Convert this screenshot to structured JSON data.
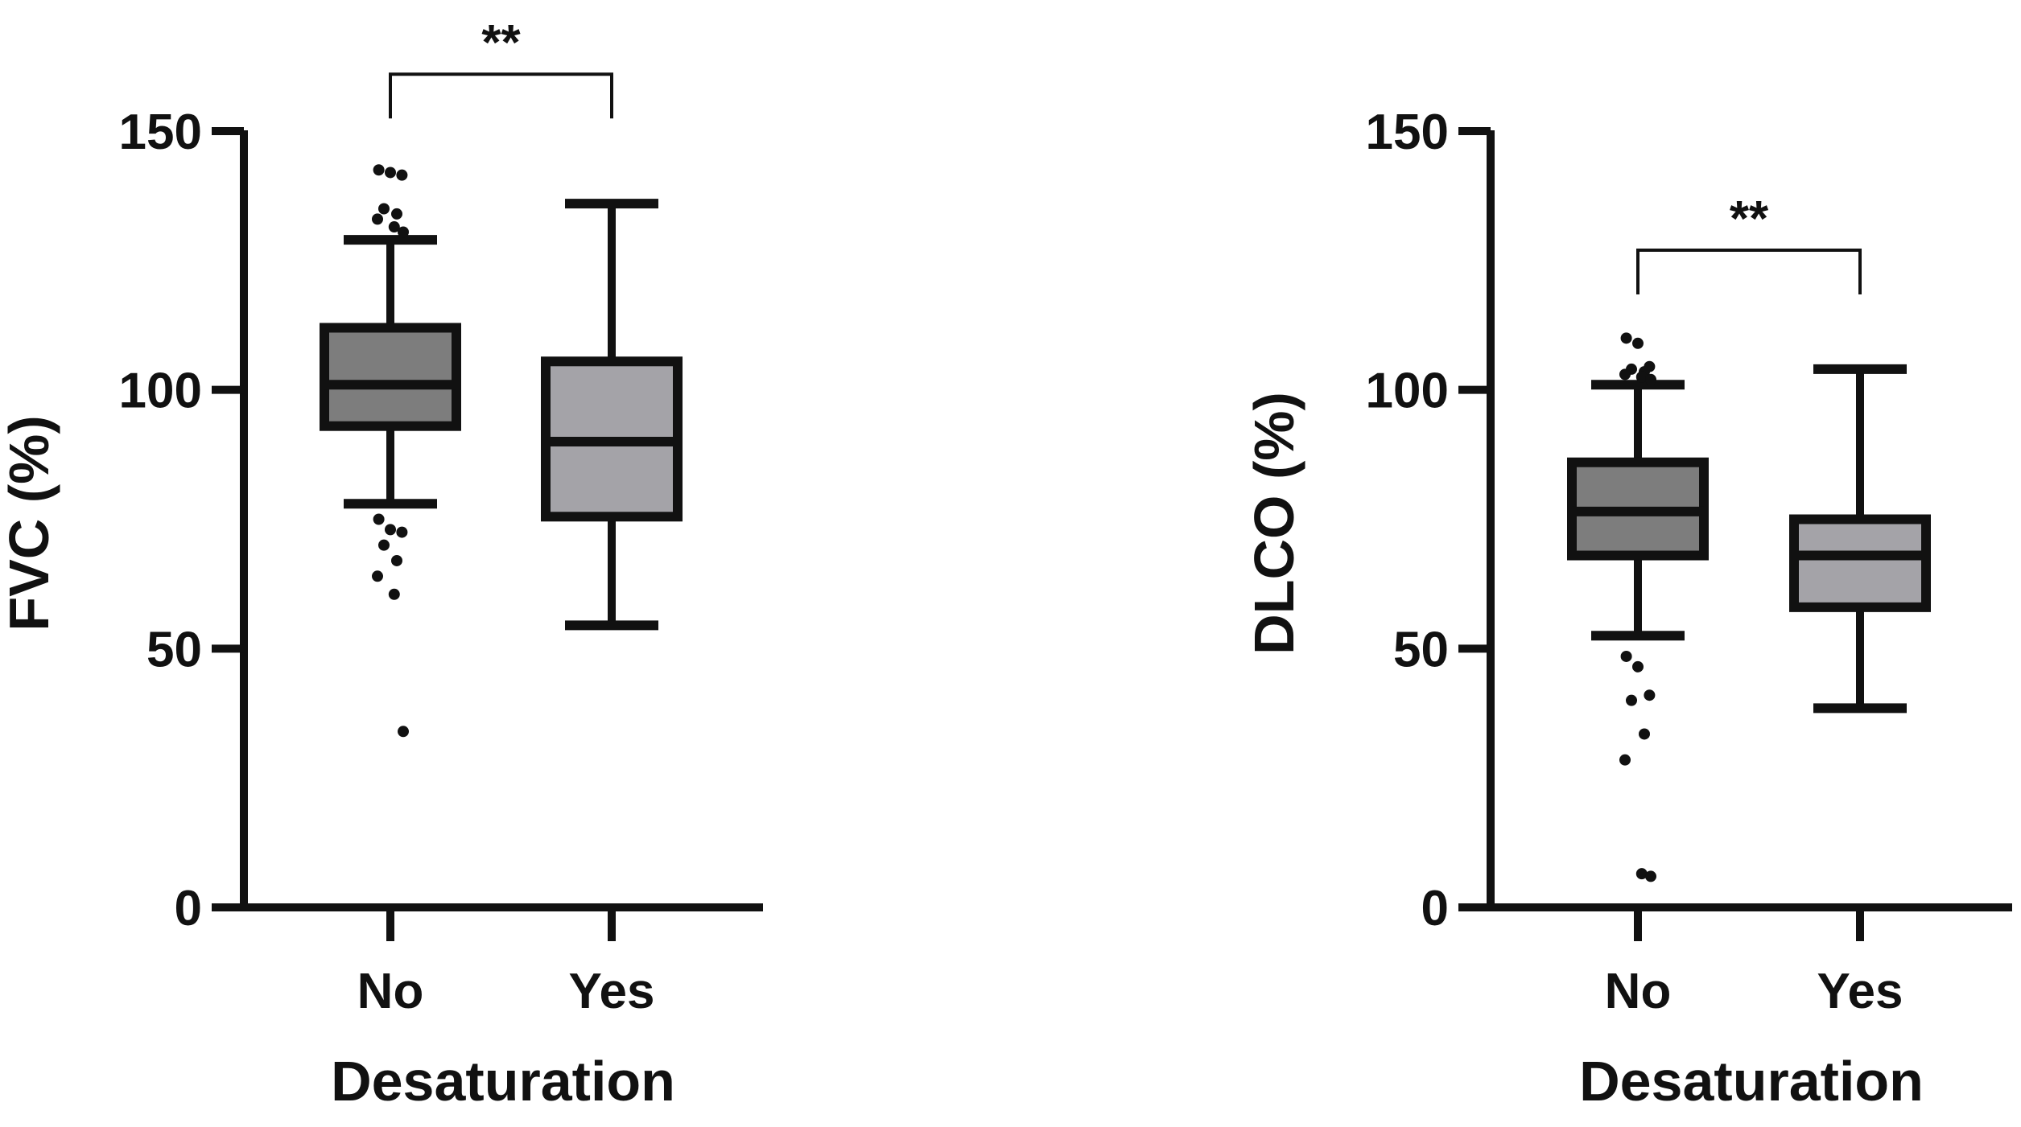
{
  "colors": {
    "ink": "#111111",
    "box_no": "#7d7d7d",
    "box_yes": "#a4a3a8"
  },
  "chart_data": [
    {
      "type": "boxplot",
      "title": "",
      "xlabel": "Desaturation",
      "ylabel": "FVC (%)",
      "ylim": [
        0,
        150
      ],
      "yticks": [
        0,
        50,
        100,
        150
      ],
      "ytick_labels": [
        "0",
        "50",
        "100",
        "150"
      ],
      "grid": false,
      "categories": [
        "No",
        "Yes"
      ],
      "boxes": [
        {
          "category": "No",
          "whisker_low": 78,
          "q1": 93,
          "median": 101,
          "q3": 112,
          "whisker_high": 129,
          "outliers": [
            142.5,
            142,
            141.5,
            135,
            134,
            133,
            131.5,
            130.5,
            75,
            73,
            72.5,
            70,
            67,
            64,
            60.5,
            34
          ]
        },
        {
          "category": "Yes",
          "whisker_low": 54.5,
          "q1": 75.5,
          "median": 90,
          "q3": 105.5,
          "whisker_high": 136,
          "outliers": []
        }
      ],
      "significance": {
        "label": "**",
        "between": [
          "No",
          "Yes"
        ],
        "level": 161
      }
    },
    {
      "type": "boxplot",
      "title": "",
      "xlabel": "Desaturation",
      "ylabel": "DLCO (%)",
      "ylim": [
        0,
        150
      ],
      "yticks": [
        0,
        50,
        100,
        150
      ],
      "ytick_labels": [
        "0",
        "50",
        "100",
        "150"
      ],
      "grid": false,
      "categories": [
        "No",
        "Yes"
      ],
      "boxes": [
        {
          "category": "No",
          "whisker_low": 52.5,
          "q1": 68,
          "median": 76.5,
          "q3": 86,
          "whisker_high": 101,
          "outliers": [
            110,
            109,
            104.5,
            104,
            103.5,
            103,
            102.5,
            102,
            48.5,
            46.5,
            41,
            40,
            33.5,
            28.5,
            6.5,
            6
          ]
        },
        {
          "category": "Yes",
          "whisker_low": 38.5,
          "q1": 58,
          "median": 68,
          "q3": 75,
          "whisker_high": 104,
          "outliers": []
        }
      ],
      "significance": {
        "label": "**",
        "between": [
          "No",
          "Yes"
        ],
        "level": 127
      }
    }
  ]
}
